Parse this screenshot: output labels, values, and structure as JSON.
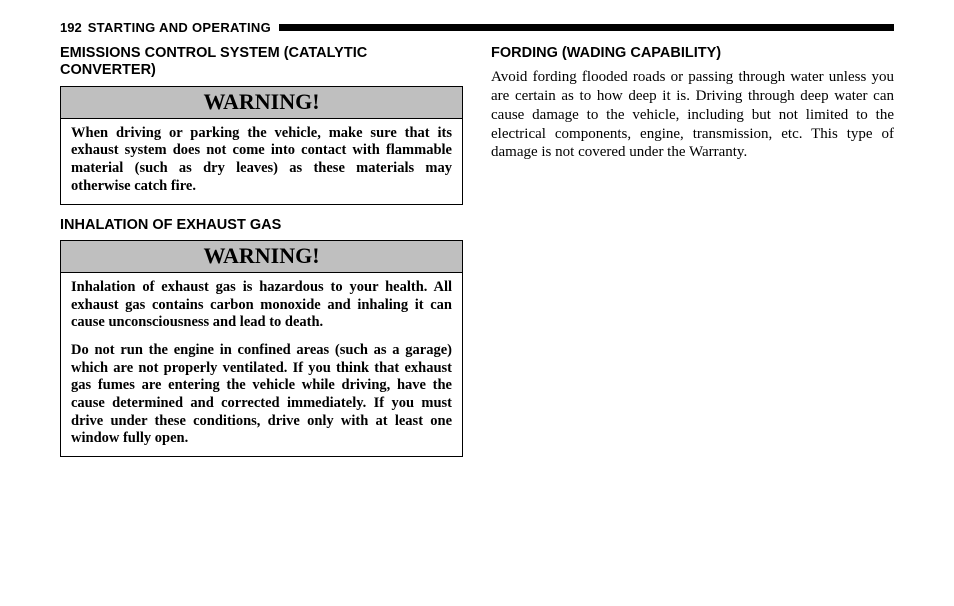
{
  "header": {
    "page_number": "192",
    "section": "STARTING AND OPERATING"
  },
  "left": {
    "heading1": "EMISSIONS CONTROL SYSTEM (CATALYTIC CONVERTER)",
    "warning1": {
      "title": "WARNING!",
      "body": "When driving or parking the vehicle, make sure that its exhaust system does not come into contact with flammable material (such as dry leaves) as these materials may otherwise catch fire."
    },
    "heading2": "INHALATION OF EXHAUST GAS",
    "warning2": {
      "title": "WARNING!",
      "p1": "Inhalation of exhaust gas is hazardous to your health. All exhaust gas contains carbon monoxide and inhaling it can cause unconsciousness and lead to death.",
      "p2": "Do not run the engine in confined areas (such as a garage) which are not properly ventilated. If you think that exhaust gas fumes are entering the vehicle while driving, have the cause determined and corrected immediately. If you must drive under these conditions, drive only with at least one window fully open."
    }
  },
  "right": {
    "heading": "FORDING (WADING CAPABILITY)",
    "body": "Avoid fording flooded roads or passing through water unless you are certain as to how deep it is. Driving through deep water can cause damage to the vehicle, including but not limited to the electrical components, engine, transmission, etc. This type of damage is not covered under the Warranty."
  }
}
